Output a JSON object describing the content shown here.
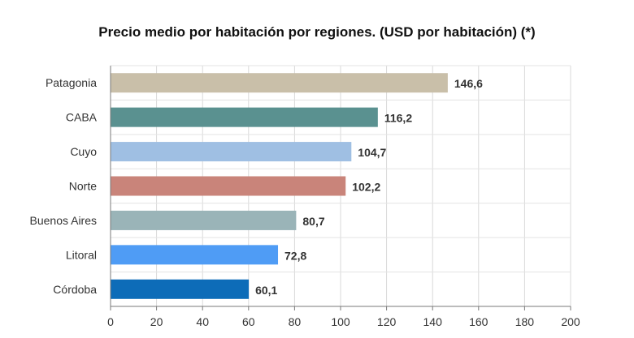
{
  "chart_data": {
    "type": "bar",
    "orientation": "horizontal",
    "title": "Precio medio por habitación por regiones. (USD por habitación) (*)",
    "categories": [
      "Patagonia",
      "CABA",
      "Cuyo",
      "Norte",
      "Buenos Aires",
      "Litoral",
      "Córdoba"
    ],
    "values": [
      146.6,
      116.2,
      104.7,
      102.2,
      80.7,
      72.8,
      60.1
    ],
    "value_labels": [
      "146,6",
      "116,2",
      "104,7",
      "102,2",
      "80,7",
      "72,8",
      "60,1"
    ],
    "colors": [
      "#c9bfa9",
      "#5a9190",
      "#9fbfe3",
      "#c9847a",
      "#9ab4b8",
      "#4f9cf5",
      "#0d6cb8"
    ],
    "xlim": [
      0,
      200
    ],
    "xticks": [
      0,
      20,
      40,
      60,
      80,
      100,
      120,
      140,
      160,
      180,
      200
    ],
    "xlabel": "",
    "ylabel": "",
    "grid": "vertical",
    "legend": "none"
  }
}
